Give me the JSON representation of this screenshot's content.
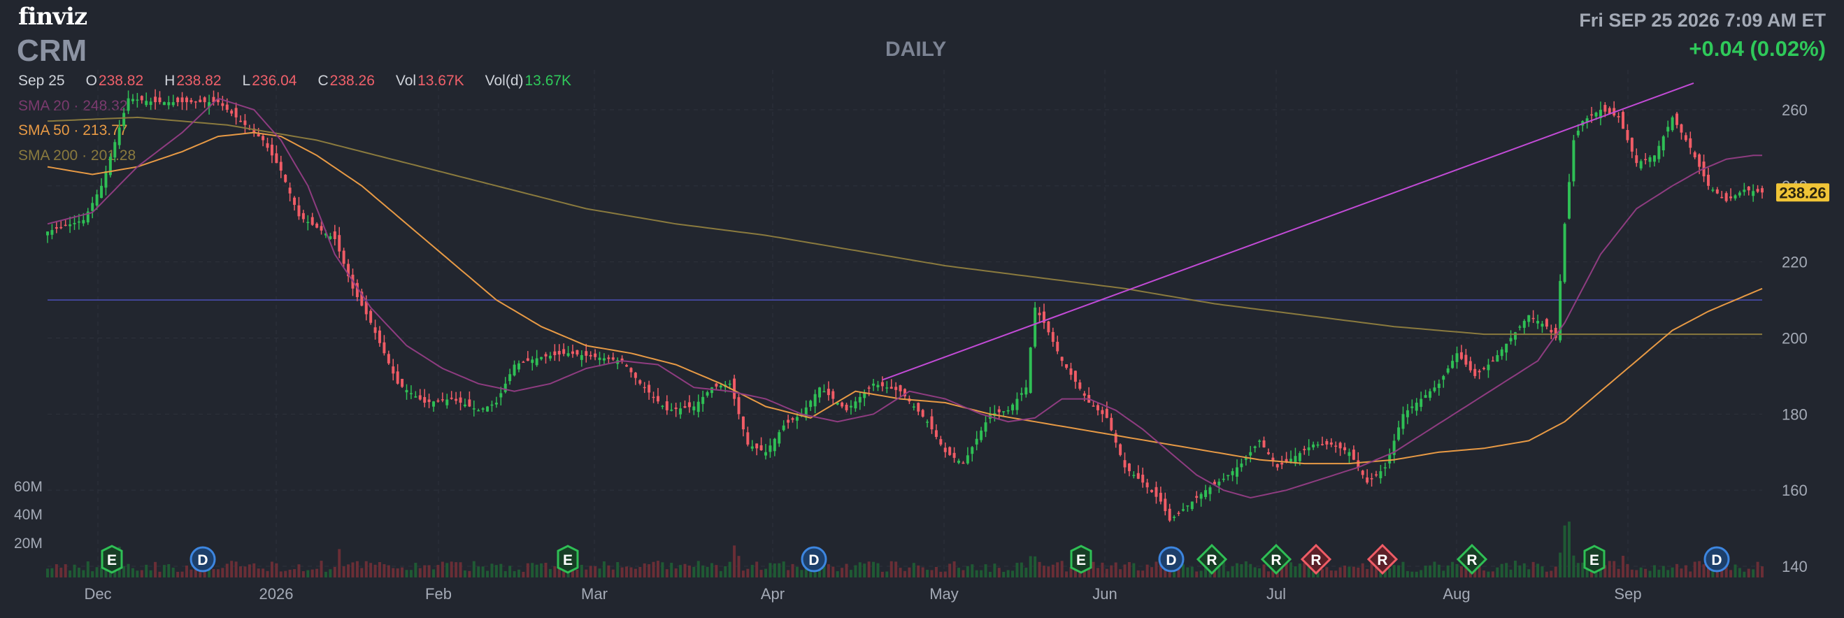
{
  "header": {
    "logo": "finviz",
    "ticker": "CRM",
    "period": "DAILY",
    "datetime": "Fri SEP 25 2026 7:09 AM ET",
    "change": "+0.04 (0.02%)"
  },
  "ohlc": {
    "date": "Sep 25",
    "open_label": "O",
    "open": "238.82",
    "high_label": "H",
    "high": "238.82",
    "low_label": "L",
    "low": "236.04",
    "close_label": "C",
    "close": "238.26",
    "vol_label": "Vol",
    "vol": "13.67K",
    "vold_label": "Vol(d)",
    "vold": "13.67K"
  },
  "sma": {
    "sma20": {
      "label": "SMA 20",
      "value": "248.32"
    },
    "sma50": {
      "label": "SMA 50",
      "value": "213.77"
    },
    "sma200": {
      "label": "SMA 200",
      "value": "201.28"
    }
  },
  "colors": {
    "up": "#2fbf55",
    "down": "#f05c66",
    "sma20": "#8e3c80",
    "sma50": "#e89a45",
    "sma200": "#8a7a3e",
    "trendline": "#c24bd6",
    "hline": "#4b4fb8",
    "price_tag": "#f0c437"
  },
  "chart_data": {
    "type": "candlestick",
    "title": "CRM DAILY",
    "ylim": [
      140,
      268
    ],
    "y_ticks": [
      140,
      160,
      180,
      200,
      220,
      240,
      260
    ],
    "volume_ticks": [
      "20M",
      "40M",
      "60M"
    ],
    "x_labels": [
      "Dec",
      "2026",
      "Feb",
      "Mar",
      "Apr",
      "May",
      "Jun",
      "Jul",
      "Aug",
      "Sep"
    ],
    "last_price": "238.26",
    "horizontal_line": 210,
    "trendline": {
      "from": [
        "Apr 21",
        189
      ],
      "to": [
        "Sep 14",
        267
      ]
    },
    "events": [
      {
        "date": "Dec 3",
        "label": "E",
        "kind": "earnings"
      },
      {
        "date": "Dec 18",
        "label": "D",
        "kind": "dividend"
      },
      {
        "date": "Feb 27",
        "label": "E",
        "kind": "earnings"
      },
      {
        "date": "Apr 9",
        "label": "D",
        "kind": "dividend"
      },
      {
        "date": "May 28",
        "label": "E",
        "kind": "earnings"
      },
      {
        "date": "Jun 10",
        "label": "D",
        "kind": "dividend"
      },
      {
        "date": "Jun 17",
        "label": "R",
        "kind": "rating-up"
      },
      {
        "date": "Jul 1",
        "label": "R",
        "kind": "rating-up"
      },
      {
        "date": "Jul 8",
        "label": "R",
        "kind": "rating-down"
      },
      {
        "date": "Jul 22",
        "label": "R",
        "kind": "rating-down"
      },
      {
        "date": "Aug 12",
        "label": "R",
        "kind": "rating-up"
      },
      {
        "date": "Aug 27",
        "label": "E",
        "kind": "earnings"
      },
      {
        "date": "Sep 18",
        "label": "D",
        "kind": "dividend"
      }
    ],
    "close_anchors": [
      [
        0,
        228
      ],
      [
        8,
        231
      ],
      [
        12,
        240
      ],
      [
        18,
        263
      ],
      [
        24,
        262
      ],
      [
        30,
        262
      ],
      [
        38,
        262
      ],
      [
        42,
        258
      ],
      [
        48,
        252
      ],
      [
        52,
        244
      ],
      [
        56,
        232
      ],
      [
        60,
        229
      ],
      [
        64,
        226
      ],
      [
        68,
        213
      ],
      [
        72,
        204
      ],
      [
        78,
        188
      ],
      [
        84,
        183
      ],
      [
        90,
        184
      ],
      [
        96,
        181
      ],
      [
        100,
        183
      ],
      [
        104,
        193
      ],
      [
        110,
        195
      ],
      [
        116,
        196
      ],
      [
        122,
        195
      ],
      [
        128,
        194
      ],
      [
        132,
        188
      ],
      [
        138,
        181
      ],
      [
        144,
        182
      ],
      [
        148,
        187
      ],
      [
        152,
        188
      ],
      [
        156,
        172
      ],
      [
        160,
        170
      ],
      [
        164,
        177
      ],
      [
        168,
        180
      ],
      [
        172,
        187
      ],
      [
        178,
        181
      ],
      [
        184,
        188
      ],
      [
        190,
        186
      ],
      [
        196,
        178
      ],
      [
        200,
        170
      ],
      [
        204,
        167
      ],
      [
        210,
        180
      ],
      [
        214,
        181
      ],
      [
        218,
        187
      ],
      [
        220,
        208
      ],
      [
        222,
        204
      ],
      [
        226,
        194
      ],
      [
        232,
        183
      ],
      [
        236,
        179
      ],
      [
        240,
        166
      ],
      [
        244,
        162
      ],
      [
        248,
        157
      ],
      [
        250,
        152
      ],
      [
        254,
        156
      ],
      [
        258,
        160
      ],
      [
        262,
        163
      ],
      [
        266,
        167
      ],
      [
        270,
        173
      ],
      [
        274,
        166
      ],
      [
        278,
        169
      ],
      [
        282,
        172
      ],
      [
        286,
        172
      ],
      [
        290,
        170
      ],
      [
        294,
        162
      ],
      [
        298,
        166
      ],
      [
        302,
        180
      ],
      [
        306,
        184
      ],
      [
        310,
        188
      ],
      [
        314,
        196
      ],
      [
        318,
        190
      ],
      [
        322,
        194
      ],
      [
        326,
        200
      ],
      [
        330,
        206
      ],
      [
        334,
        203
      ],
      [
        336,
        200
      ],
      [
        338,
        230
      ],
      [
        340,
        252
      ],
      [
        342,
        257
      ],
      [
        346,
        260
      ],
      [
        350,
        258
      ],
      [
        354,
        246
      ],
      [
        358,
        248
      ],
      [
        362,
        258
      ],
      [
        366,
        250
      ],
      [
        370,
        240
      ],
      [
        374,
        236
      ],
      [
        378,
        239
      ],
      [
        382,
        238.26
      ]
    ],
    "sma20": [
      [
        0,
        230
      ],
      [
        10,
        233
      ],
      [
        20,
        245
      ],
      [
        30,
        254
      ],
      [
        38,
        263
      ],
      [
        46,
        260
      ],
      [
        52,
        252
      ],
      [
        58,
        240
      ],
      [
        64,
        222
      ],
      [
        72,
        208
      ],
      [
        80,
        198
      ],
      [
        88,
        192
      ],
      [
        96,
        188
      ],
      [
        104,
        186
      ],
      [
        112,
        188
      ],
      [
        120,
        192
      ],
      [
        128,
        194
      ],
      [
        136,
        193
      ],
      [
        144,
        187
      ],
      [
        152,
        186
      ],
      [
        160,
        184
      ],
      [
        168,
        180
      ],
      [
        176,
        178
      ],
      [
        184,
        180
      ],
      [
        192,
        186
      ],
      [
        200,
        184
      ],
      [
        208,
        180
      ],
      [
        214,
        178
      ],
      [
        220,
        179
      ],
      [
        226,
        184
      ],
      [
        232,
        184
      ],
      [
        238,
        181
      ],
      [
        244,
        176
      ],
      [
        250,
        170
      ],
      [
        256,
        164
      ],
      [
        262,
        160
      ],
      [
        268,
        158
      ],
      [
        276,
        160
      ],
      [
        284,
        163
      ],
      [
        292,
        166
      ],
      [
        300,
        170
      ],
      [
        308,
        176
      ],
      [
        316,
        182
      ],
      [
        324,
        188
      ],
      [
        332,
        194
      ],
      [
        338,
        204
      ],
      [
        346,
        222
      ],
      [
        354,
        234
      ],
      [
        362,
        240
      ],
      [
        368,
        244
      ],
      [
        374,
        247
      ],
      [
        380,
        248
      ],
      [
        382,
        248
      ]
    ],
    "sma50": [
      [
        0,
        245
      ],
      [
        10,
        243
      ],
      [
        20,
        245
      ],
      [
        30,
        249
      ],
      [
        38,
        253
      ],
      [
        46,
        254
      ],
      [
        52,
        253
      ],
      [
        60,
        248
      ],
      [
        70,
        240
      ],
      [
        80,
        230
      ],
      [
        90,
        220
      ],
      [
        100,
        210
      ],
      [
        110,
        203
      ],
      [
        120,
        198
      ],
      [
        130,
        196
      ],
      [
        140,
        193
      ],
      [
        150,
        188
      ],
      [
        160,
        182
      ],
      [
        170,
        179
      ],
      [
        180,
        186
      ],
      [
        190,
        184
      ],
      [
        200,
        183
      ],
      [
        210,
        180
      ],
      [
        220,
        178
      ],
      [
        230,
        176
      ],
      [
        240,
        174
      ],
      [
        250,
        172
      ],
      [
        260,
        170
      ],
      [
        270,
        168
      ],
      [
        280,
        167
      ],
      [
        290,
        167
      ],
      [
        300,
        168
      ],
      [
        310,
        170
      ],
      [
        320,
        171
      ],
      [
        330,
        173
      ],
      [
        338,
        178
      ],
      [
        346,
        186
      ],
      [
        354,
        194
      ],
      [
        362,
        202
      ],
      [
        370,
        207
      ],
      [
        378,
        211
      ],
      [
        382,
        213
      ]
    ],
    "sma200": [
      [
        0,
        257
      ],
      [
        20,
        258
      ],
      [
        40,
        256
      ],
      [
        60,
        252
      ],
      [
        80,
        246
      ],
      [
        100,
        240
      ],
      [
        120,
        234
      ],
      [
        140,
        230
      ],
      [
        160,
        227
      ],
      [
        180,
        223
      ],
      [
        200,
        219
      ],
      [
        220,
        216
      ],
      [
        240,
        213
      ],
      [
        260,
        209
      ],
      [
        280,
        206
      ],
      [
        300,
        203
      ],
      [
        320,
        201
      ],
      [
        340,
        201
      ],
      [
        360,
        201
      ],
      [
        382,
        201
      ]
    ]
  }
}
